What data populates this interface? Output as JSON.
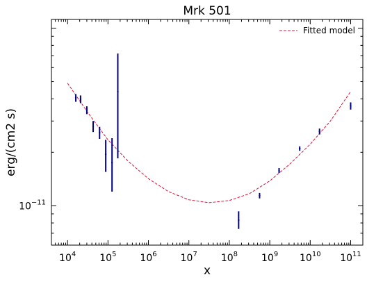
{
  "chart_data": {
    "type": "scatter",
    "title": "Mrk 501",
    "xlabel": "x",
    "ylabel": "erg/(cm2 s)",
    "xscale": "log",
    "yscale": "log",
    "xlim": [
      4000.0,
      200000000000.0
    ],
    "ylim": [
      6e-12,
      1.12e-10
    ],
    "xticks": [
      {
        "value": 10000.0,
        "base": "10",
        "exp": "4"
      },
      {
        "value": 100000.0,
        "base": "10",
        "exp": "5"
      },
      {
        "value": 1000000.0,
        "base": "10",
        "exp": "6"
      },
      {
        "value": 10000000.0,
        "base": "10",
        "exp": "7"
      },
      {
        "value": 100000000.0,
        "base": "10",
        "exp": "8"
      },
      {
        "value": 1000000000.0,
        "base": "10",
        "exp": "9"
      },
      {
        "value": 10000000000.0,
        "base": "10",
        "exp": "10"
      },
      {
        "value": 100000000000.0,
        "base": "10",
        "exp": "11"
      }
    ],
    "yticks": [
      {
        "value": 1e-11,
        "base": "10",
        "exp": "−11"
      }
    ],
    "grid": false,
    "legend": {
      "position": "top-right",
      "entries": [
        {
          "label": "Fitted model",
          "color": "#dc143c",
          "style": "dashed"
        }
      ]
    },
    "series": [
      {
        "kind": "errorbar",
        "color": "#00008b",
        "points": [
          {
            "x": 16000.0,
            "y": 4.05e-11,
            "ylo": 3.85e-11,
            "yhi": 4.25e-11
          },
          {
            "x": 21000.0,
            "y": 3.98e-11,
            "ylo": 3.78e-11,
            "yhi": 4.18e-11
          },
          {
            "x": 30000.0,
            "y": 3.45e-11,
            "ylo": 3.28e-11,
            "yhi": 3.63e-11
          },
          {
            "x": 43000.0,
            "y": 2.8e-11,
            "ylo": 2.6e-11,
            "yhi": 3e-11
          },
          {
            "x": 62000.0,
            "y": 2.58e-11,
            "ylo": 2.38e-11,
            "yhi": 2.78e-11
          },
          {
            "x": 88000.0,
            "y": 1.95e-11,
            "ylo": 1.55e-11,
            "yhi": 2.35e-11
          },
          {
            "x": 126000.0,
            "y": 1.75e-11,
            "ylo": 1.2e-11,
            "yhi": 2.4e-11
          },
          {
            "x": 175000.0,
            "y": 4.4e-11,
            "ylo": 1.85e-11,
            "yhi": 7.2e-11
          },
          {
            "x": 170000000.0,
            "y": 8.3e-12,
            "ylo": 7.4e-12,
            "yhi": 9.3e-12
          },
          {
            "x": 560000000.0,
            "y": 1.14e-11,
            "ylo": 1.1e-11,
            "yhi": 1.18e-11
          },
          {
            "x": 1700000000.0,
            "y": 1.58e-11,
            "ylo": 1.53e-11,
            "yhi": 1.63e-11
          },
          {
            "x": 5500000000.0,
            "y": 2.1e-11,
            "ylo": 2.04e-11,
            "yhi": 2.16e-11
          },
          {
            "x": 17000000000.0,
            "y": 2.62e-11,
            "ylo": 2.52e-11,
            "yhi": 2.72e-11
          },
          {
            "x": 100000000000.0,
            "y": 3.65e-11,
            "ylo": 3.48e-11,
            "yhi": 3.82e-11
          }
        ]
      },
      {
        "name": "Fitted model",
        "kind": "line",
        "color": "#dc143c",
        "style": "dashed",
        "x": [
          10000.0,
          31600.0,
          100000.0,
          316000.0,
          1000000.0,
          3160000.0,
          10000000.0,
          31600000.0,
          100000000.0,
          316000000.0,
          1000000000.0,
          3160000000.0,
          10000000000.0,
          31600000000.0,
          100000000000.0
        ],
        "y": [
          4.9e-11,
          3.35e-11,
          2.35e-11,
          1.78e-11,
          1.42e-11,
          1.2e-11,
          1.08e-11,
          1.04e-11,
          1.07e-11,
          1.17e-11,
          1.38e-11,
          1.72e-11,
          2.22e-11,
          3e-11,
          4.4e-11
        ]
      }
    ]
  }
}
